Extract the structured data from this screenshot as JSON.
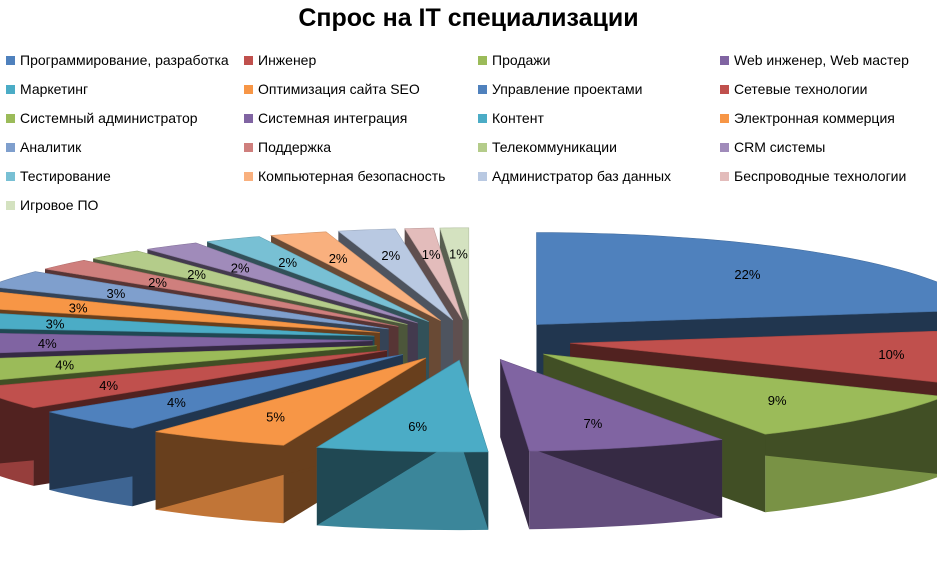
{
  "chart_data": {
    "type": "pie",
    "style": "3d-exploded",
    "title": "Спрос на IT специализации",
    "legend_position": "top",
    "slices": [
      {
        "label": "Программирование, разработка",
        "value": 22,
        "display": "22%",
        "color": "#4F81BD"
      },
      {
        "label": "Инженер",
        "value": 10,
        "display": "10%",
        "color": "#C0504D"
      },
      {
        "label": "Продажи",
        "value": 9,
        "display": "9%",
        "color": "#9BBB59"
      },
      {
        "label": "Web инженер, Web мастер",
        "value": 7,
        "display": "7%",
        "color": "#8064A2"
      },
      {
        "label": "Маркетинг",
        "value": 6,
        "display": "6%",
        "color": "#4BACC6"
      },
      {
        "label": "Оптимизация сайта SEO",
        "value": 5,
        "display": "5%",
        "color": "#F79646"
      },
      {
        "label": "Управление проектами",
        "value": 4,
        "display": "4%",
        "color": "#4F81BD"
      },
      {
        "label": "Сетевые технологии",
        "value": 4,
        "display": "4%",
        "color": "#C0504D"
      },
      {
        "label": "Системный администратор",
        "value": 4,
        "display": "4%",
        "color": "#9BBB59"
      },
      {
        "label": "Системная интеграция",
        "value": 4,
        "display": "4%",
        "color": "#8064A2"
      },
      {
        "label": "Контент",
        "value": 3,
        "display": "3%",
        "color": "#4BACC6"
      },
      {
        "label": "Электронная коммерция",
        "value": 3,
        "display": "3%",
        "color": "#F79646"
      },
      {
        "label": "Аналитик",
        "value": 3,
        "display": "3%",
        "color": "#7F9FCD"
      },
      {
        "label": "Поддержка",
        "value": 2,
        "display": "2%",
        "color": "#CF7F7D"
      },
      {
        "label": "Телекоммуникации",
        "value": 2,
        "display": "2%",
        "color": "#B4CC8A"
      },
      {
        "label": "CRM системы",
        "value": 2,
        "display": "2%",
        "color": "#A08BBA"
      },
      {
        "label": "Тестирование",
        "value": 2,
        "display": "2%",
        "color": "#78C0D4"
      },
      {
        "label": "Компьютерная безопасность",
        "value": 2,
        "display": "2%",
        "color": "#F9B07E"
      },
      {
        "label": "Администратор баз данных",
        "value": 2,
        "display": "2%",
        "color": "#B9C9E2"
      },
      {
        "label": "Беспроводные технологии",
        "value": 1,
        "display": "1%",
        "color": "#E3BCBB"
      },
      {
        "label": "Игровое ПО",
        "value": 1,
        "display": "1%",
        "color": "#D4E2C0"
      }
    ]
  }
}
